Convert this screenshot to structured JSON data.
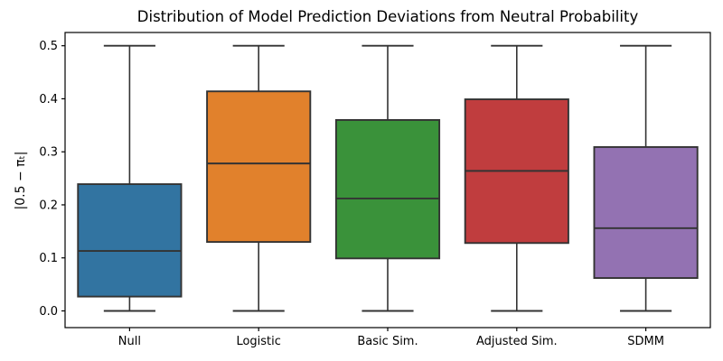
{
  "chart_data": {
    "type": "box",
    "title": "Distribution of Model Prediction Deviations from Neutral Probability",
    "ylabel": "|0.5 − πₜ|",
    "xlabel": "",
    "categories": [
      "Null",
      "Logistic",
      "Basic Sim.",
      "Adjusted Sim.",
      "SDMM"
    ],
    "yticks": [
      0.0,
      0.1,
      0.2,
      0.3,
      0.4,
      0.5
    ],
    "ytick_labels": [
      "0.0",
      "0.1",
      "0.2",
      "0.3",
      "0.4",
      "0.5"
    ],
    "ylim": [
      -0.0315,
      0.525
    ],
    "grid": false,
    "legend_position": "none",
    "box_width_fraction": 0.8,
    "edge_color": "#333333",
    "spine_color": "#000000",
    "box_colors": [
      "#3274a1",
      "#e1812c",
      "#3a923a",
      "#c03d3e",
      "#9372b2"
    ],
    "boxes": [
      {
        "category": "Null",
        "whisker_low": 0.0,
        "q1": 0.027,
        "median": 0.113,
        "q3": 0.239,
        "whisker_high": 0.5
      },
      {
        "category": "Logistic",
        "whisker_low": 0.0,
        "q1": 0.13,
        "median": 0.278,
        "q3": 0.414,
        "whisker_high": 0.5
      },
      {
        "category": "Basic Sim.",
        "whisker_low": 0.0,
        "q1": 0.099,
        "median": 0.212,
        "q3": 0.36,
        "whisker_high": 0.5
      },
      {
        "category": "Adjusted Sim.",
        "whisker_low": 0.0,
        "q1": 0.128,
        "median": 0.264,
        "q3": 0.399,
        "whisker_high": 0.5
      },
      {
        "category": "SDMM",
        "whisker_low": 0.0,
        "q1": 0.062,
        "median": 0.156,
        "q3": 0.309,
        "whisker_high": 0.5
      }
    ]
  }
}
